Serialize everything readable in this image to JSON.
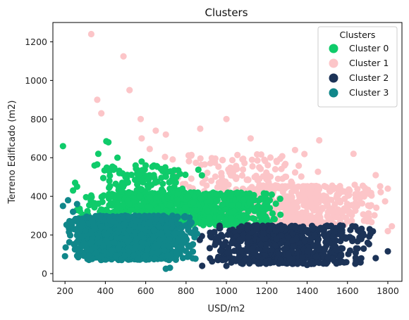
{
  "chart_data": {
    "type": "scatter",
    "title": "Clusters",
    "xlabel": "USD/m2",
    "ylabel": "Terreno Edificado (m2)",
    "xlim": [
      140,
      1870
    ],
    "ylim": [
      -40,
      1300
    ],
    "x_ticks": [
      200,
      400,
      600,
      800,
      1000,
      1200,
      1400,
      1600,
      1800
    ],
    "y_ticks": [
      0,
      200,
      400,
      600,
      800,
      1000,
      1200
    ],
    "grid": false,
    "legend": {
      "title": "Clusters",
      "placement": "top-right"
    },
    "series": [
      {
        "name": "Cluster 0",
        "color": "#0fcb6a",
        "clouds": [
          {
            "x_range": [
              240,
              1300
            ],
            "y_range": [
              250,
              420
            ],
            "count": 900
          },
          {
            "x_range": [
              300,
              900
            ],
            "y_range": [
              380,
              560
            ],
            "count": 110
          }
        ],
        "points": [
          [
            190,
            660
          ],
          [
            405,
            685
          ],
          [
            415,
            680
          ],
          [
            365,
            620
          ],
          [
            360,
            565
          ],
          [
            420,
            530
          ],
          [
            460,
            600
          ],
          [
            470,
            520
          ],
          [
            580,
            580
          ],
          [
            600,
            560
          ],
          [
            640,
            510
          ],
          [
            550,
            560
          ],
          [
            500,
            500
          ],
          [
            250,
            470
          ],
          [
            260,
            450
          ],
          [
            240,
            430
          ],
          [
            390,
            495
          ],
          [
            420,
            480
          ]
        ]
      },
      {
        "name": "Cluster 1",
        "color": "#fcc5c8",
        "clouds": [
          {
            "x_range": [
              850,
              1820
            ],
            "y_range": [
              250,
              460
            ],
            "count": 480
          },
          {
            "x_range": [
              650,
              1500
            ],
            "y_range": [
              440,
              620
            ],
            "count": 110
          }
        ],
        "points": [
          [
            330,
            1240
          ],
          [
            490,
            1125
          ],
          [
            520,
            950
          ],
          [
            360,
            900
          ],
          [
            380,
            830
          ],
          [
            575,
            800
          ],
          [
            1000,
            800
          ],
          [
            650,
            740
          ],
          [
            870,
            750
          ],
          [
            1120,
            700
          ],
          [
            1460,
            690
          ],
          [
            1630,
            620
          ],
          [
            1340,
            640
          ],
          [
            580,
            700
          ],
          [
            620,
            645
          ],
          [
            700,
            720
          ],
          [
            1800,
            440
          ],
          [
            1740,
            510
          ],
          [
            1820,
            245
          ],
          [
            1800,
            220
          ]
        ]
      },
      {
        "name": "Cluster 2",
        "color": "#1c3357",
        "clouds": [
          {
            "x_range": [
              850,
              1760
            ],
            "y_range": [
              50,
              250
            ],
            "count": 650
          }
        ],
        "points": [
          [
            1740,
            80
          ],
          [
            1800,
            115
          ],
          [
            1700,
            160
          ],
          [
            1650,
            130
          ],
          [
            880,
            40
          ],
          [
            1000,
            40
          ],
          [
            1400,
            45
          ],
          [
            1420,
            50
          ],
          [
            1710,
            230
          ]
        ]
      },
      {
        "name": "Cluster 3",
        "color": "#10878a",
        "clouds": [
          {
            "x_range": [
              195,
              870
            ],
            "y_range": [
              70,
              300
            ],
            "count": 1100
          }
        ],
        "points": [
          [
            190,
            350
          ],
          [
            200,
            90
          ],
          [
            215,
            380
          ],
          [
            700,
            25
          ],
          [
            720,
            30
          ],
          [
            260,
            360
          ],
          [
            240,
            320
          ]
        ]
      }
    ]
  }
}
